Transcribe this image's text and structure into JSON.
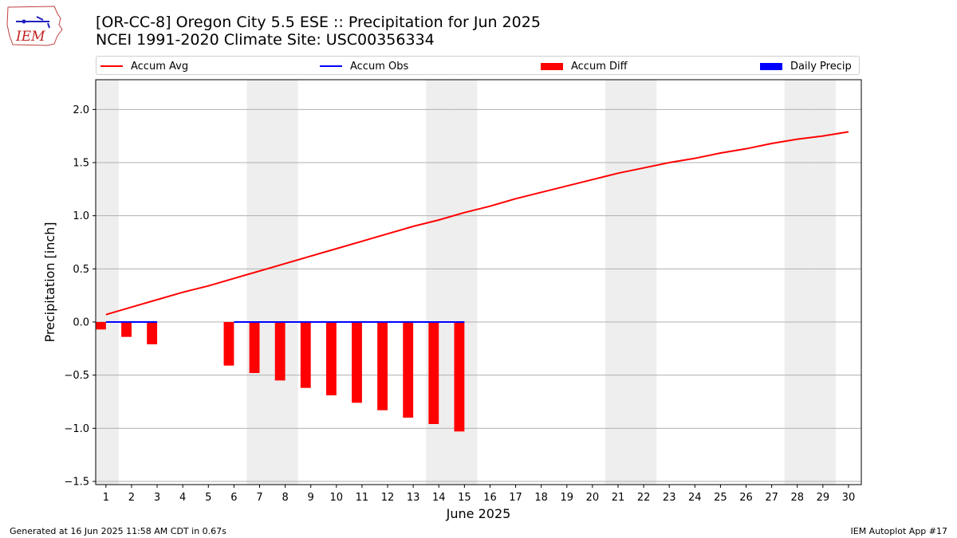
{
  "colors": {
    "accum_avg": "#ff0000",
    "accum_obs": "#0000ff",
    "accum_diff": "#ff0000",
    "daily_precip": "#0000ff",
    "weekend_shade": "#eeeeee",
    "grid": "#b0b0b0"
  },
  "logo": {
    "text": "IEM",
    "icon": "iowa-state-outline-icon"
  },
  "footer": {
    "left": "Generated at 16 Jun 2025 11:58 AM CDT in 0.67s",
    "right": "IEM Autoplot App #17"
  },
  "chart_data": {
    "type": "line",
    "title": "[OR-CC-8] Oregon City 5.5 ESE :: Precipitation for Jun 2025",
    "subtitle": "NCEI 1991-2020 Climate Site: USC00356334",
    "xlabel": "June 2025",
    "ylabel": "Precipitation [inch]",
    "xlim": [
      0.6,
      30.5
    ],
    "ylim": [
      -1.53,
      2.28
    ],
    "yticks": [
      -1.5,
      -1.0,
      -0.5,
      0.0,
      0.5,
      1.0,
      1.5,
      2.0
    ],
    "ytick_labels": [
      "−1.5",
      "−1.0",
      "−0.5",
      "0.0",
      "0.5",
      "1.0",
      "1.5",
      "2.0"
    ],
    "x": [
      1,
      2,
      3,
      4,
      5,
      6,
      7,
      8,
      9,
      10,
      11,
      12,
      13,
      14,
      15,
      16,
      17,
      18,
      19,
      20,
      21,
      22,
      23,
      24,
      25,
      26,
      27,
      28,
      29,
      30
    ],
    "weekend_days": [
      1,
      7,
      8,
      14,
      15,
      21,
      22,
      28,
      29
    ],
    "grid": "horizontal",
    "legend": {
      "placement": "top",
      "entries": [
        {
          "label": "Accum Avg",
          "kind": "line",
          "color": "#ff0000"
        },
        {
          "label": "Accum Obs",
          "kind": "line",
          "color": "#0000ff"
        },
        {
          "label": "Accum Diff",
          "kind": "patch",
          "color": "#ff0000"
        },
        {
          "label": "Daily Precip",
          "kind": "patch",
          "color": "#0000ff"
        }
      ]
    },
    "series": [
      {
        "name": "Accum Avg",
        "type": "line",
        "x": [
          1,
          2,
          3,
          4,
          5,
          6,
          7,
          8,
          9,
          10,
          11,
          12,
          13,
          14,
          15,
          16,
          17,
          18,
          19,
          20,
          21,
          22,
          23,
          24,
          25,
          26,
          27,
          28,
          29,
          30
        ],
        "values": [
          0.07,
          0.14,
          0.21,
          0.28,
          0.34,
          0.41,
          0.48,
          0.55,
          0.62,
          0.69,
          0.76,
          0.83,
          0.9,
          0.96,
          1.03,
          1.09,
          1.16,
          1.22,
          1.28,
          1.34,
          1.4,
          1.45,
          1.5,
          1.54,
          1.59,
          1.63,
          1.68,
          1.72,
          1.75,
          1.79
        ]
      },
      {
        "name": "Accum Obs",
        "type": "line",
        "x": [
          1,
          2,
          3,
          null,
          6,
          7,
          8,
          9,
          10,
          11,
          12,
          13,
          14,
          15
        ],
        "values": [
          0.0,
          0.0,
          0.0,
          null,
          0.0,
          0.0,
          0.0,
          0.0,
          0.0,
          0.0,
          0.0,
          0.0,
          0.0,
          0.0
        ]
      },
      {
        "name": "Accum Diff",
        "type": "bar",
        "x": [
          1,
          2,
          3,
          6,
          7,
          8,
          9,
          10,
          11,
          12,
          13,
          14,
          15
        ],
        "values": [
          -0.07,
          -0.14,
          -0.21,
          -0.41,
          -0.48,
          -0.55,
          -0.62,
          -0.69,
          -0.76,
          -0.83,
          -0.9,
          -0.96,
          -1.03
        ]
      },
      {
        "name": "Daily Precip",
        "type": "bar",
        "x": [
          1,
          2,
          3,
          6,
          7,
          8,
          9,
          10,
          11,
          12,
          13,
          14,
          15
        ],
        "values": [
          0,
          0,
          0,
          0,
          0,
          0,
          0,
          0,
          0,
          0,
          0,
          0,
          0
        ]
      }
    ]
  }
}
